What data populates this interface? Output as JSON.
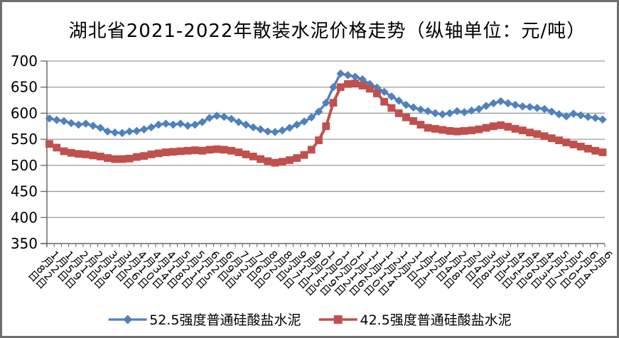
{
  "title": "湖北省2021-2022年散装水泥价格走势（纵轴单位：元/吨）",
  "colors": {
    "series_blue": "#4F81BD",
    "series_red": "#C0504D",
    "gridline": "#9b9b9b",
    "axis": "#666666",
    "text": "#000000",
    "frame_border": "#6e6e6e"
  },
  "chart_data": {
    "type": "line",
    "title": "湖北省2021-2022年散装水泥价格走势（纵轴单位：元/吨）",
    "ylabel": "元/吨",
    "ylim": [
      350,
      700
    ],
    "y_tick_step": 50,
    "y_tick_labels": [
      "350",
      "400",
      "450",
      "500",
      "550",
      "600",
      "650",
      "700"
    ],
    "grid": true,
    "legend_position": "bottom",
    "x_label_interval": 2,
    "x": [
      "1月8日",
      "1月15日",
      "1月22日",
      "1月29日",
      "2月5日",
      "2月12日",
      "2月19日",
      "2月26日",
      "3月5日",
      "3月12日",
      "3月19日",
      "3月26日",
      "4月2日",
      "4月9日",
      "4月16日",
      "4月23日",
      "4月30日",
      "5月7日",
      "5月14日",
      "5月21日",
      "5月28日",
      "6月4日",
      "6月11日",
      "6月18日",
      "6月25日",
      "7月2日",
      "7月9日",
      "7月16日",
      "7月23日",
      "7月30日",
      "8月6日",
      "8月13日",
      "8月20日",
      "8月27日",
      "9月3日",
      "9月10日",
      "9月17日",
      "9月24日",
      "10月1日",
      "10月8日",
      "10月15日",
      "10月22日",
      "10月29日",
      "11月5日",
      "11月12日",
      "11月19日",
      "11月26日",
      "12月3日",
      "12月10日",
      "12月17日",
      "12月24日",
      "12月31日",
      "1月7日",
      "1月14日",
      "1月21日",
      "1月28日",
      "2月4日",
      "2月11日",
      "2月18日",
      "2月25日",
      "3月4日",
      "3月11日",
      "3月18日",
      "3月25日",
      "4月1日",
      "4月8日",
      "4月15日",
      "4月22日",
      "4月29日",
      "5月6日",
      "5月13日",
      "5月20日",
      "5月27日",
      "6月3日",
      "6月10日",
      "6月17日",
      "6月24日"
    ],
    "series": [
      {
        "name": "52.5强度普通硅酸盐水泥",
        "color": "#4F81BD",
        "marker": "diamond",
        "values": [
          590,
          587,
          585,
          581,
          578,
          580,
          576,
          572,
          565,
          563,
          562,
          565,
          566,
          569,
          573,
          578,
          580,
          578,
          580,
          576,
          578,
          583,
          591,
          595,
          593,
          589,
          583,
          578,
          573,
          569,
          565,
          564,
          567,
          572,
          578,
          584,
          592,
          603,
          620,
          650,
          676,
          673,
          670,
          665,
          656,
          649,
          641,
          632,
          624,
          616,
          611,
          607,
          604,
          600,
          598,
          600,
          604,
          602,
          605,
          608,
          614,
          619,
          623,
          619,
          616,
          613,
          612,
          610,
          608,
          603,
          598,
          594,
          599,
          596,
          593,
          591,
          588
        ]
      },
      {
        "name": "42.5强度普通硅酸盐水泥",
        "color": "#C0504D",
        "marker": "square",
        "values": [
          541,
          534,
          527,
          524,
          522,
          521,
          519,
          517,
          514,
          512,
          512,
          513,
          516,
          518,
          521,
          523,
          525,
          526,
          527,
          528,
          529,
          528,
          530,
          531,
          530,
          528,
          525,
          521,
          517,
          512,
          508,
          505,
          507,
          510,
          514,
          520,
          530,
          548,
          575,
          620,
          650,
          656,
          657,
          653,
          647,
          638,
          622,
          610,
          600,
          592,
          585,
          578,
          572,
          570,
          568,
          566,
          565,
          566,
          567,
          569,
          572,
          575,
          577,
          574,
          570,
          567,
          563,
          560,
          556,
          552,
          548,
          544,
          540,
          536,
          532,
          528,
          525
        ]
      }
    ]
  },
  "legend": {
    "items": [
      {
        "label": "52.5强度普通硅酸盐水泥",
        "marker": "diamond",
        "color": "#4F81BD"
      },
      {
        "label": "42.5强度普通硅酸盐水泥",
        "marker": "square",
        "color": "#C0504D"
      }
    ]
  }
}
